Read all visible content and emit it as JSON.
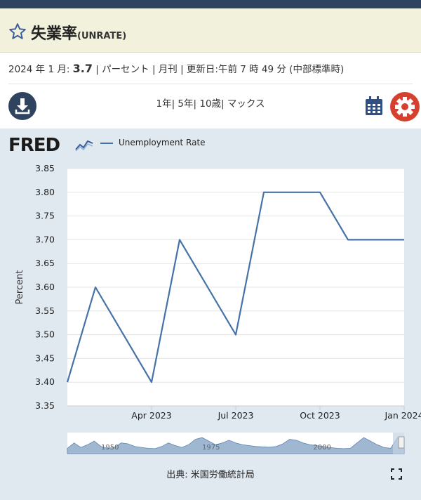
{
  "title": "失業率",
  "series_id": "(UNRATE)",
  "meta": {
    "date": "2024 年 1 月:",
    "value": "3.7",
    "rest": " | パーセント | 月刊 | 更新日:午前 7 時 49 分 (中部標準時)"
  },
  "ranges": [
    "1年",
    "5年",
    "10歳",
    "マックス"
  ],
  "fred_logo": "FRED",
  "source": "出典: 米国労働統計局",
  "colors": {
    "line": "#4572a7",
    "header": "#2f4360",
    "gear": "#d6402e",
    "panel": "#e1e9f0"
  },
  "icons": [
    "star-icon",
    "download-icon",
    "calendar-icon",
    "gear-icon",
    "fullscreen-icon"
  ],
  "chart_data": {
    "type": "line",
    "title": "",
    "xlabel": "",
    "ylabel": "Percent",
    "ylim": [
      3.35,
      3.85
    ],
    "yticks": [
      "3.35",
      "3.40",
      "3.45",
      "3.50",
      "3.55",
      "3.60",
      "3.65",
      "3.70",
      "3.75",
      "3.80",
      "3.85"
    ],
    "xticks": [
      {
        "label": "Apr 2023",
        "month_index": 3
      },
      {
        "label": "Jul 2023",
        "month_index": 6
      },
      {
        "label": "Oct 2023",
        "month_index": 9
      },
      {
        "label": "Jan 2024",
        "month_index": 12
      }
    ],
    "x": [
      "2023-01",
      "2023-02",
      "2023-03",
      "2023-04",
      "2023-05",
      "2023-06",
      "2023-07",
      "2023-08",
      "2023-09",
      "2023-10",
      "2023-11",
      "2023-12",
      "2024-01"
    ],
    "series": [
      {
        "name": "Unemployment Rate",
        "values": [
          3.4,
          3.6,
          3.5,
          3.4,
          3.7,
          3.6,
          3.5,
          3.8,
          3.8,
          3.8,
          3.7,
          3.7,
          3.7
        ]
      }
    ],
    "navigator_labels": [
      "1950",
      "1975",
      "2000"
    ],
    "grid": true,
    "legend": "top-left"
  }
}
